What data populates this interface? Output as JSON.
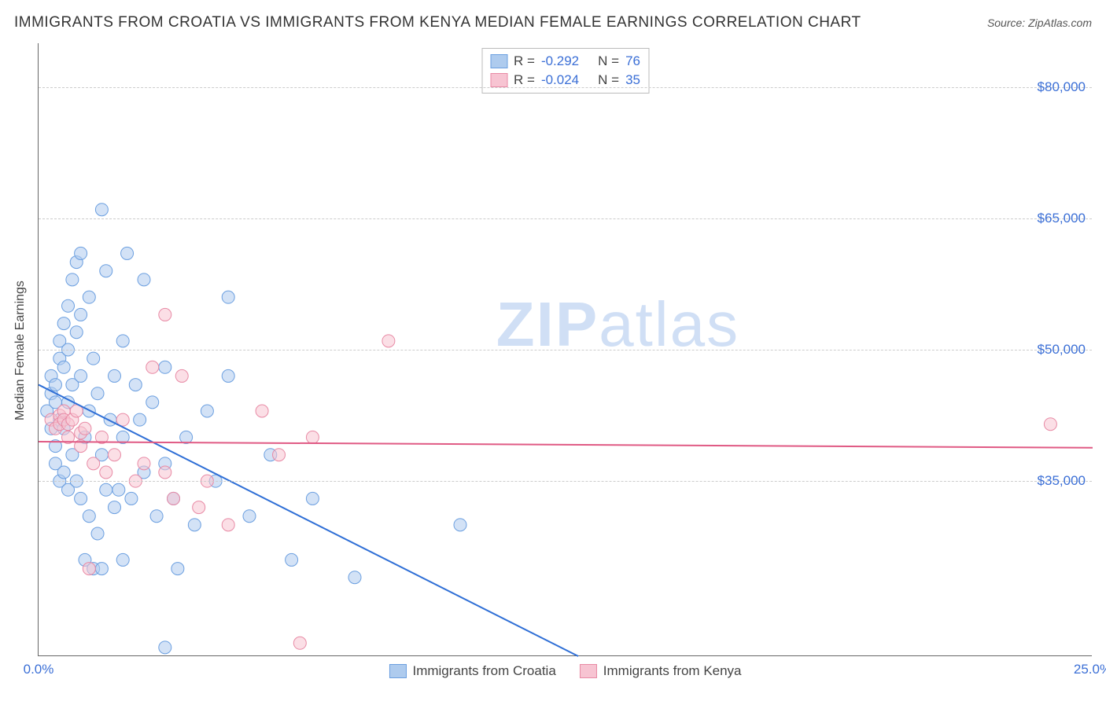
{
  "title": "IMMIGRANTS FROM CROATIA VS IMMIGRANTS FROM KENYA MEDIAN FEMALE EARNINGS CORRELATION CHART",
  "source_label": "Source: ZipAtlas.com",
  "ylabel": "Median Female Earnings",
  "watermark_a": "ZIP",
  "watermark_b": "atlas",
  "chart": {
    "type": "scatter",
    "xlim": [
      0.0,
      25.0
    ],
    "ylim": [
      15000,
      85000
    ],
    "xticks": [
      {
        "v": 0.0,
        "label": "0.0%"
      },
      {
        "v": 25.0,
        "label": "25.0%"
      }
    ],
    "yticks": [
      {
        "v": 35000,
        "label": "$35,000"
      },
      {
        "v": 50000,
        "label": "$50,000"
      },
      {
        "v": 65000,
        "label": "$65,000"
      },
      {
        "v": 80000,
        "label": "$80,000"
      }
    ],
    "grid_color": "#cccccc",
    "background_color": "#ffffff",
    "marker_radius": 8,
    "marker_opacity": 0.55,
    "series": [
      {
        "name": "Immigrants from Croatia",
        "color_fill": "#aecbee",
        "color_stroke": "#6b9fe0",
        "R": "-0.292",
        "N": "76",
        "trend": {
          "x1": 0.0,
          "y1": 46000,
          "x2": 12.8,
          "y2": 15000
        },
        "points": [
          [
            0.2,
            43000
          ],
          [
            0.3,
            45000
          ],
          [
            0.3,
            47000
          ],
          [
            0.4,
            46000
          ],
          [
            0.4,
            44000
          ],
          [
            0.5,
            49000
          ],
          [
            0.5,
            42000
          ],
          [
            0.5,
            51000
          ],
          [
            0.6,
            48000
          ],
          [
            0.6,
            53000
          ],
          [
            0.6,
            41000
          ],
          [
            0.7,
            55000
          ],
          [
            0.7,
            50000
          ],
          [
            0.7,
            44000
          ],
          [
            0.8,
            58000
          ],
          [
            0.8,
            46000
          ],
          [
            0.9,
            60000
          ],
          [
            0.9,
            52000
          ],
          [
            1.0,
            54000
          ],
          [
            1.0,
            47000
          ],
          [
            1.0,
            61000
          ],
          [
            1.1,
            40000
          ],
          [
            1.2,
            43000
          ],
          [
            1.2,
            56000
          ],
          [
            1.3,
            49000
          ],
          [
            1.4,
            45000
          ],
          [
            1.5,
            66000
          ],
          [
            1.5,
            38000
          ],
          [
            1.6,
            59000
          ],
          [
            1.7,
            42000
          ],
          [
            1.8,
            47000
          ],
          [
            1.9,
            34000
          ],
          [
            2.0,
            51000
          ],
          [
            2.0,
            40000
          ],
          [
            2.1,
            61000
          ],
          [
            2.2,
            33000
          ],
          [
            2.3,
            46000
          ],
          [
            2.5,
            58000
          ],
          [
            2.5,
            36000
          ],
          [
            2.7,
            44000
          ],
          [
            2.8,
            31000
          ],
          [
            3.0,
            48000
          ],
          [
            3.0,
            16000
          ],
          [
            3.2,
            33000
          ],
          [
            3.3,
            25000
          ],
          [
            3.5,
            40000
          ],
          [
            3.7,
            30000
          ],
          [
            4.0,
            43000
          ],
          [
            4.2,
            35000
          ],
          [
            4.5,
            56000
          ],
          [
            5.0,
            31000
          ],
          [
            5.5,
            38000
          ],
          [
            6.0,
            26000
          ],
          [
            6.5,
            33000
          ],
          [
            7.5,
            24000
          ],
          [
            10.0,
            30000
          ],
          [
            0.4,
            37000
          ],
          [
            0.5,
            35000
          ],
          [
            0.6,
            36000
          ],
          [
            0.7,
            34000
          ],
          [
            0.8,
            38000
          ],
          [
            0.9,
            35000
          ],
          [
            1.0,
            33000
          ],
          [
            1.1,
            26000
          ],
          [
            1.3,
            25000
          ],
          [
            1.5,
            25000
          ],
          [
            1.8,
            32000
          ],
          [
            2.0,
            26000
          ],
          [
            0.3,
            41000
          ],
          [
            0.4,
            39000
          ],
          [
            1.2,
            31000
          ],
          [
            1.4,
            29000
          ],
          [
            1.6,
            34000
          ],
          [
            2.4,
            42000
          ],
          [
            3.0,
            37000
          ],
          [
            4.5,
            47000
          ]
        ]
      },
      {
        "name": "Immigrants from Kenya",
        "color_fill": "#f7c4d2",
        "color_stroke": "#e88aa5",
        "R": "-0.024",
        "N": "35",
        "trend": {
          "x1": 0.0,
          "y1": 39500,
          "x2": 25.0,
          "y2": 38800
        },
        "points": [
          [
            0.3,
            42000
          ],
          [
            0.4,
            41000
          ],
          [
            0.5,
            42500
          ],
          [
            0.5,
            41500
          ],
          [
            0.6,
            43000
          ],
          [
            0.6,
            42000
          ],
          [
            0.7,
            40000
          ],
          [
            0.7,
            41500
          ],
          [
            0.8,
            42000
          ],
          [
            0.9,
            43000
          ],
          [
            1.0,
            40500
          ],
          [
            1.0,
            39000
          ],
          [
            1.1,
            41000
          ],
          [
            1.3,
            37000
          ],
          [
            1.5,
            40000
          ],
          [
            1.6,
            36000
          ],
          [
            1.8,
            38000
          ],
          [
            2.0,
            42000
          ],
          [
            2.3,
            35000
          ],
          [
            2.5,
            37000
          ],
          [
            2.7,
            48000
          ],
          [
            3.0,
            36000
          ],
          [
            3.0,
            54000
          ],
          [
            3.2,
            33000
          ],
          [
            3.4,
            47000
          ],
          [
            3.8,
            32000
          ],
          [
            4.0,
            35000
          ],
          [
            4.5,
            30000
          ],
          [
            5.3,
            43000
          ],
          [
            5.7,
            38000
          ],
          [
            6.2,
            16500
          ],
          [
            6.5,
            40000
          ],
          [
            8.3,
            51000
          ],
          [
            1.2,
            25000
          ],
          [
            24.0,
            41500
          ]
        ]
      }
    ]
  },
  "legend_bottom": [
    {
      "swatch_fill": "#aecbee",
      "swatch_stroke": "#6b9fe0",
      "label": "Immigrants from Croatia"
    },
    {
      "swatch_fill": "#f7c4d2",
      "swatch_stroke": "#e88aa5",
      "label": "Immigrants from Kenya"
    }
  ]
}
